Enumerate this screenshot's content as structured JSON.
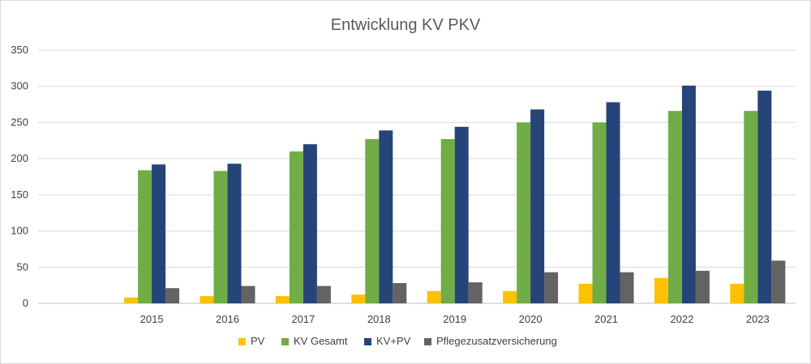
{
  "chart_data": {
    "type": "bar",
    "title": "Entwicklung KV PKV",
    "xlabel": "",
    "ylabel": "",
    "ylim": [
      0,
      350
    ],
    "yticks": [
      0,
      50,
      100,
      150,
      200,
      250,
      300,
      350
    ],
    "grid": true,
    "legend_position": "bottom",
    "categories": [
      "",
      "2015",
      "2016",
      "2017",
      "2018",
      "2019",
      "2020",
      "2021",
      "2022",
      "2023"
    ],
    "series": [
      {
        "name": "PV",
        "color": "#FFC000",
        "values": [
          null,
          8,
          10,
          10,
          12,
          17,
          17,
          27,
          35,
          27
        ]
      },
      {
        "name": "KV Gesamt",
        "color": "#70AD47",
        "values": [
          null,
          184,
          183,
          210,
          227,
          227,
          250,
          250,
          266,
          266
        ]
      },
      {
        "name": "KV+PV",
        "color": "#264478",
        "values": [
          null,
          192,
          193,
          220,
          239,
          244,
          268,
          278,
          301,
          294
        ]
      },
      {
        "name": "Pflegezusatzversicherung",
        "color": "#636363",
        "values": [
          null,
          21,
          24,
          24,
          28,
          29,
          43,
          43,
          45,
          59
        ]
      }
    ]
  }
}
